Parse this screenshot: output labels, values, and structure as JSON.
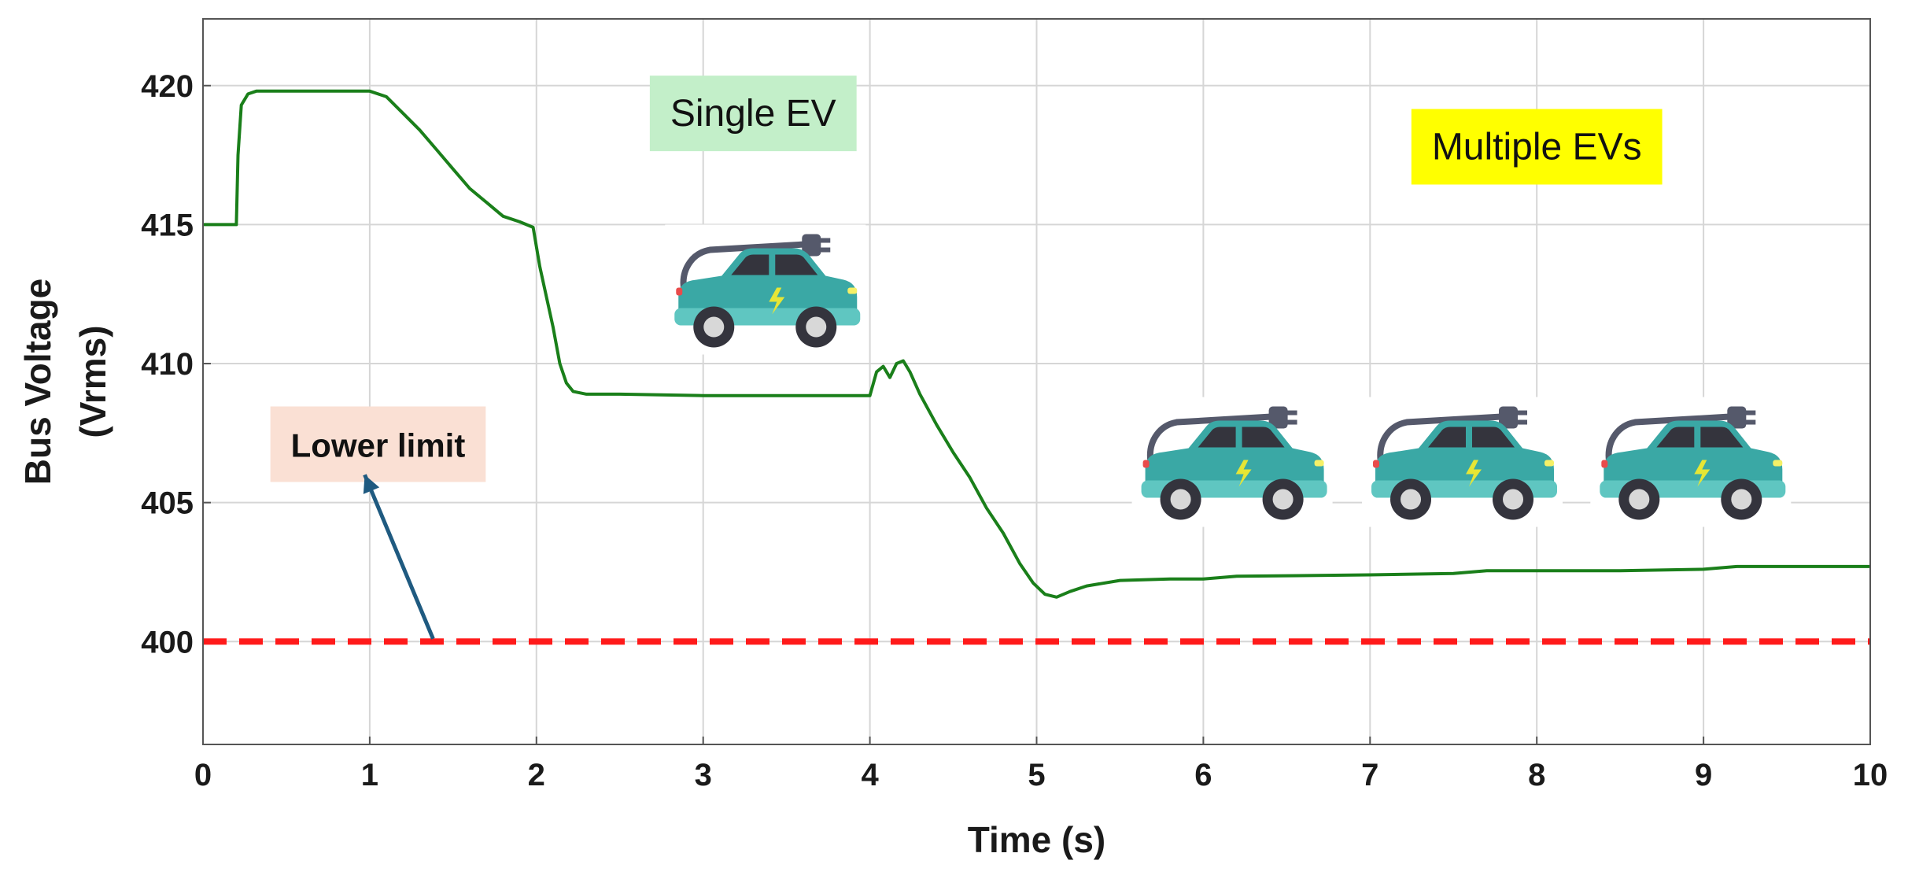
{
  "chart_data": {
    "type": "line",
    "xlabel": "Time (s)",
    "ylabel_lines": [
      "Bus Voltage",
      "(Vrms)"
    ],
    "xlim": [
      0,
      10
    ],
    "ylim": [
      396.3,
      422.4
    ],
    "xticks": [
      0,
      1,
      2,
      3,
      4,
      5,
      6,
      7,
      8,
      9,
      10
    ],
    "yticks": [
      400,
      405,
      410,
      415,
      420
    ],
    "grid": true,
    "series": [
      {
        "color": "#1a7f1a",
        "x": [
          0,
          0.2,
          0.21,
          0.23,
          0.27,
          0.32,
          0.5,
          0.8,
          1.0,
          1.1,
          1.2,
          1.3,
          1.4,
          1.5,
          1.6,
          1.7,
          1.8,
          1.9,
          1.98,
          2.02,
          2.06,
          2.1,
          2.14,
          2.18,
          2.22,
          2.3,
          2.5,
          3.0,
          3.5,
          4.0,
          4.04,
          4.08,
          4.12,
          4.16,
          4.2,
          4.24,
          4.3,
          4.4,
          4.5,
          4.6,
          4.7,
          4.8,
          4.9,
          4.98,
          5.05,
          5.12,
          5.2,
          5.3,
          5.5,
          5.8,
          6.0,
          6.2,
          7.0,
          7.5,
          7.7,
          8.0,
          8.5,
          9.0,
          9.2,
          9.5,
          10.0
        ],
        "y": [
          415.0,
          415.0,
          417.5,
          419.3,
          419.7,
          419.8,
          419.8,
          419.8,
          419.8,
          419.6,
          419.0,
          418.4,
          417.7,
          417.0,
          416.3,
          415.8,
          415.3,
          415.1,
          414.9,
          413.5,
          412.4,
          411.3,
          410.0,
          409.3,
          409.0,
          408.9,
          408.9,
          408.85,
          408.85,
          408.85,
          409.7,
          409.9,
          409.5,
          410.0,
          410.1,
          409.7,
          408.9,
          407.8,
          406.8,
          405.9,
          404.8,
          403.9,
          402.8,
          402.1,
          401.7,
          401.6,
          401.8,
          402.0,
          402.2,
          402.25,
          402.25,
          402.35,
          402.4,
          402.45,
          402.55,
          402.55,
          402.55,
          402.6,
          402.7,
          402.7,
          402.7
        ]
      },
      {
        "color": "#ff1a1a",
        "style": "dashed",
        "x": [
          0,
          10
        ],
        "y": [
          400,
          400
        ]
      }
    ],
    "annotations": [
      {
        "text": "Single EV",
        "bg": "#c3efc9",
        "x": 3.3,
        "y": 419.0
      },
      {
        "text": "Multiple EVs",
        "bg": "#ffff00",
        "x": 8.0,
        "y": 417.8
      },
      {
        "text": "Lower limit",
        "bg": "#fae0d4",
        "x": 1.05,
        "y": 407.1
      }
    ],
    "arrow": {
      "from": [
        1.38,
        400.1
      ],
      "to": [
        0.97,
        406.0
      ],
      "color": "#1f5a80"
    },
    "ev_icons": [
      {
        "x": 3.3,
        "y": 411.6
      },
      {
        "x": 6.1,
        "y": 405.4
      },
      {
        "x": 7.48,
        "y": 405.4
      },
      {
        "x": 8.85,
        "y": 405.4
      }
    ]
  }
}
